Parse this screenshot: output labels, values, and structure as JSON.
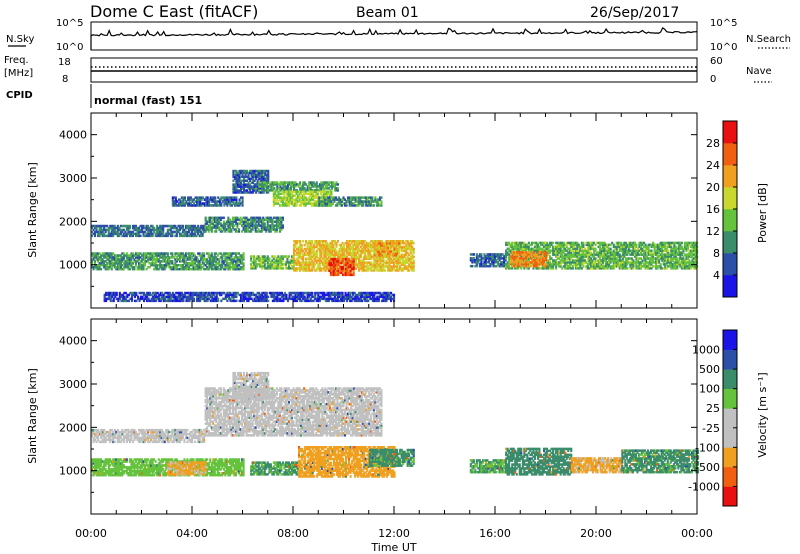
{
  "header": {
    "station": "Dome C East (fitACF)",
    "beam": "Beam 01",
    "date": "26/Sep/2017"
  },
  "top_strip": {
    "noise_label": "N.Sky",
    "noise_ticks": [
      "10^5",
      "10^0"
    ],
    "noise_right_label": "N.Search",
    "noise_right_ticks": [
      "10^5",
      "10^0"
    ],
    "freq_label_1": "Freq.",
    "freq_label_2": "[MHz]",
    "freq_ticks": [
      "18",
      "8"
    ],
    "nave_label": "Nave",
    "nave_ticks": [
      "60",
      "0"
    ],
    "cpid_label": "CPID",
    "cpid_text": "normal (fast) 151"
  },
  "colors": {
    "power_scale": [
      "#1a14e6",
      "#2c4fa8",
      "#3b8c6b",
      "#64c23c",
      "#c8d82e",
      "#f0a020",
      "#f06010",
      "#e81010"
    ],
    "velocity_scale": [
      "#e81010",
      "#f06010",
      "#f0a020",
      "#c0c0c0",
      "#c0c0c0",
      "#64c23c",
      "#3b8c6b",
      "#2c4fa8",
      "#1a14e6"
    ]
  },
  "chart_data": [
    {
      "type": "heatmap",
      "name": "power",
      "ylabel": "Slant Range [km]",
      "yticks": [
        "1000",
        "2000",
        "3000",
        "4000"
      ],
      "ylim": [
        0,
        4500
      ],
      "xlim": [
        0,
        24
      ],
      "colorbar_label": "Power [dB]",
      "colorbar_ticks": [
        "4",
        "8",
        "12",
        "16",
        "20",
        "24",
        "28"
      ],
      "colorbar_range": [
        0,
        32
      ],
      "bands": [
        {
          "t": [
            0.0,
            4.5
          ],
          "r": [
            1650,
            1900
          ],
          "v": 8
        },
        {
          "t": [
            4.5,
            7.6
          ],
          "r": [
            1750,
            2100
          ],
          "v": 10
        },
        {
          "t": [
            3.2,
            6.0
          ],
          "r": [
            2350,
            2550
          ],
          "v": 7
        },
        {
          "t": [
            5.6,
            7.0
          ],
          "r": [
            2650,
            3150
          ],
          "v": 7
        },
        {
          "t": [
            6.5,
            9.8
          ],
          "r": [
            2700,
            2900
          ],
          "v": 11
        },
        {
          "t": [
            7.2,
            9.5
          ],
          "r": [
            2350,
            2700
          ],
          "v": 16
        },
        {
          "t": [
            9.0,
            11.5
          ],
          "r": [
            2350,
            2550
          ],
          "v": 10
        },
        {
          "t": [
            0.0,
            6.0
          ],
          "r": [
            880,
            1280
          ],
          "v": 11
        },
        {
          "t": [
            6.3,
            8.0
          ],
          "r": [
            900,
            1200
          ],
          "v": 14
        },
        {
          "t": [
            8.0,
            12.8
          ],
          "r": [
            850,
            1550
          ],
          "v": 20
        },
        {
          "t": [
            9.4,
            10.4
          ],
          "r": [
            750,
            1150
          ],
          "v": 27
        },
        {
          "t": [
            11.2,
            12.2
          ],
          "r": [
            1200,
            1500
          ],
          "v": 22
        },
        {
          "t": [
            15.0,
            16.4
          ],
          "r": [
            950,
            1250
          ],
          "v": 7
        },
        {
          "t": [
            16.4,
            24.0
          ],
          "r": [
            900,
            1500
          ],
          "v": 13
        },
        {
          "t": [
            16.6,
            18.0
          ],
          "r": [
            950,
            1300
          ],
          "v": 24
        },
        {
          "t": [
            0.5,
            12.0
          ],
          "r": [
            150,
            350
          ],
          "v": 5
        }
      ]
    },
    {
      "type": "heatmap",
      "name": "velocity",
      "ylabel": "Slant Range [km]",
      "yticks": [
        "1000",
        "2000",
        "3000",
        "4000"
      ],
      "ylim": [
        0,
        4500
      ],
      "xlim": [
        0,
        24
      ],
      "xlabel": "Time UT",
      "xticks": [
        "00:00",
        "04:00",
        "08:00",
        "12:00",
        "16:00",
        "20:00",
        "00:00"
      ],
      "colorbar_label": "Velocity [m s⁻¹]",
      "colorbar_ticks": [
        "-1000",
        "-500",
        "-100",
        "-25",
        "25",
        "100",
        "500",
        "1000"
      ],
      "bands": [
        {
          "t": [
            0.0,
            4.5
          ],
          "r": [
            1650,
            1950
          ],
          "v": 0
        },
        {
          "t": [
            4.5,
            11.5
          ],
          "r": [
            1800,
            2900
          ],
          "v": 0
        },
        {
          "t": [
            5.6,
            7.0
          ],
          "r": [
            2650,
            3250
          ],
          "v": 0
        },
        {
          "t": [
            0.0,
            6.0
          ],
          "r": [
            880,
            1280
          ],
          "v": 60
        },
        {
          "t": [
            3.0,
            4.5
          ],
          "r": [
            900,
            1200
          ],
          "v": -150
        },
        {
          "t": [
            6.3,
            8.2
          ],
          "r": [
            900,
            1200
          ],
          "v": 120
        },
        {
          "t": [
            8.2,
            12.0
          ],
          "r": [
            850,
            1550
          ],
          "v": -200
        },
        {
          "t": [
            11.0,
            12.8
          ],
          "r": [
            1100,
            1500
          ],
          "v": 150
        },
        {
          "t": [
            15.0,
            16.4
          ],
          "r": [
            950,
            1250
          ],
          "v": 100
        },
        {
          "t": [
            16.4,
            19.0
          ],
          "r": [
            900,
            1500
          ],
          "v": 200
        },
        {
          "t": [
            19.0,
            21.0
          ],
          "r": [
            950,
            1300
          ],
          "v": -150
        },
        {
          "t": [
            21.0,
            24.0
          ],
          "r": [
            950,
            1450
          ],
          "v": 150
        }
      ]
    }
  ]
}
